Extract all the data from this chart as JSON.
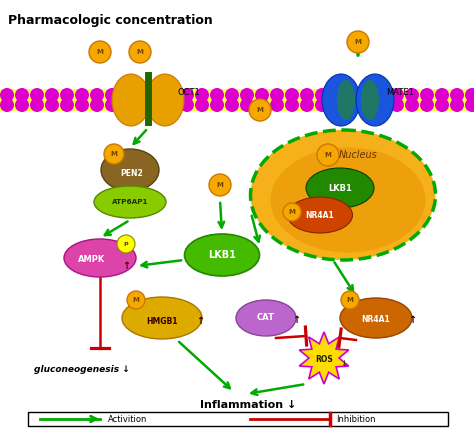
{
  "title": "Pharmacologic concentration",
  "bg_color": "#ffffff",
  "membrane_color": "#dd00cc",
  "membrane_inner_color": "#ffff44",
  "green_arrow": "#00aa00",
  "red_arrow": "#cc0000",
  "oct1_color": "#e8a000",
  "mate1_color_left": "#1144cc",
  "mate1_color_right": "#2266ee",
  "M_circle_color": "#f5a800",
  "M_circle_border": "#cc7700",
  "nucleus_color": "#f5a800",
  "nucleus_border": "#00aa00",
  "pen2_color": "#886622",
  "atp6ap1_color": "#88cc00",
  "ampk_color": "#dd44aa",
  "lkb1_nucleus_color": "#228800",
  "nr4a1_nucleus_color": "#cc4400",
  "hmgb1_color": "#ddaa00",
  "cat_color": "#bb66cc",
  "nr4a1_color": "#cc6600",
  "ros_color": "#ffdd00",
  "ros_border": "#cc00cc",
  "inflammation_label": "Inflammation ↓",
  "gluconeogenesis_label": "gluconeogenesis ↓",
  "legend_activation": "Activition",
  "legend_inhibition": "Inhibition"
}
